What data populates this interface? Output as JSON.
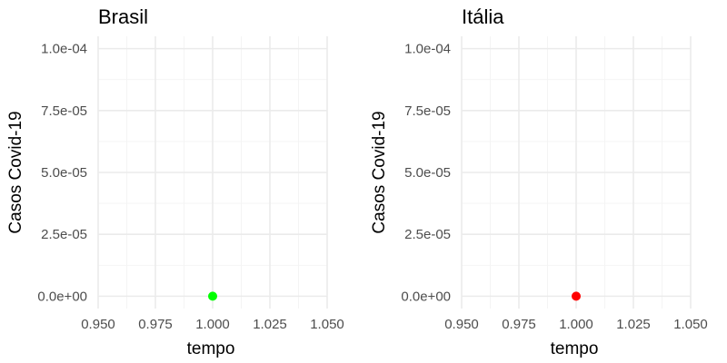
{
  "chart_data": [
    {
      "type": "scatter",
      "title": "Brasil",
      "xlabel": "tempo",
      "ylabel": "Casos Covid-19",
      "xlim": [
        0.95,
        1.05
      ],
      "ylim": [
        0,
        0.0001
      ],
      "x_ticks": [
        0.95,
        0.975,
        1.0,
        1.025,
        1.05
      ],
      "x_tick_labels": [
        "0.950",
        "0.975",
        "1.000",
        "1.025",
        "1.050"
      ],
      "y_ticks": [
        0,
        2.5e-05,
        5e-05,
        7.5e-05,
        0.0001
      ],
      "y_tick_labels": [
        "0.0e+00",
        "2.5e-05",
        "5.0e-05",
        "7.5e-05",
        "1.0e-04"
      ],
      "grid": true,
      "series": [
        {
          "color": "#00ff00",
          "points": [
            {
              "x": 1.0,
              "y": 0
            }
          ]
        }
      ]
    },
    {
      "type": "scatter",
      "title": "Itália",
      "xlabel": "tempo",
      "ylabel": "Casos Covid-19",
      "xlim": [
        0.95,
        1.05
      ],
      "ylim": [
        0,
        0.0001
      ],
      "x_ticks": [
        0.95,
        0.975,
        1.0,
        1.025,
        1.05
      ],
      "x_tick_labels": [
        "0.950",
        "0.975",
        "1.000",
        "1.025",
        "1.050"
      ],
      "y_ticks": [
        0,
        2.5e-05,
        5e-05,
        7.5e-05,
        0.0001
      ],
      "y_tick_labels": [
        "0.0e+00",
        "2.5e-05",
        "5.0e-05",
        "7.5e-05",
        "1.0e-04"
      ],
      "grid": true,
      "series": [
        {
          "color": "#ff0000",
          "points": [
            {
              "x": 1.0,
              "y": 0
            }
          ]
        }
      ]
    }
  ]
}
